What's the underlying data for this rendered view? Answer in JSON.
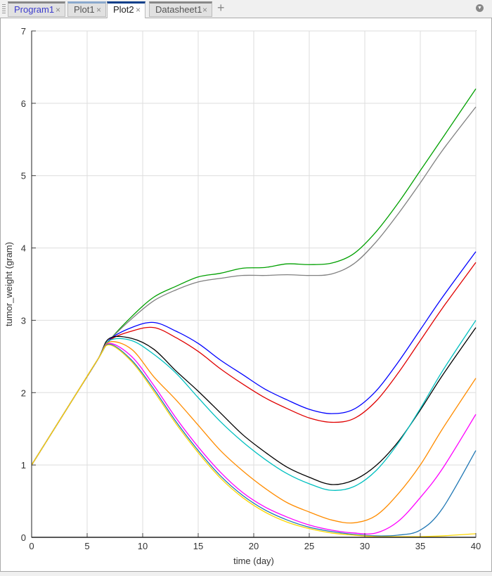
{
  "tabs": [
    {
      "label": "Program1",
      "close": "×",
      "color": "#3c3ccc"
    },
    {
      "label": "Plot1",
      "close": "×"
    },
    {
      "label": "Plot2",
      "close": "×",
      "active": true
    },
    {
      "label": "Datasheet1",
      "close": "×"
    }
  ],
  "add_tab": "+",
  "icons": {
    "grip": "grip-icon",
    "add": "plus-icon",
    "menu": "dropdown-menu-icon"
  },
  "chart_data": {
    "type": "line",
    "title": "",
    "xlabel": "time (day)",
    "ylabel": "tumor_weight (gram)",
    "xlim": [
      0,
      40
    ],
    "ylim": [
      0,
      7
    ],
    "xticks": [
      0,
      5,
      10,
      15,
      20,
      25,
      30,
      35,
      40
    ],
    "yticks": [
      0,
      1,
      2,
      3,
      4,
      5,
      6,
      7
    ],
    "grid": true,
    "x": [
      0,
      2,
      4,
      6,
      7,
      9,
      11,
      13,
      15,
      17,
      19,
      21,
      23,
      25,
      27,
      29,
      31,
      33,
      35,
      37,
      40
    ],
    "series": [
      {
        "color": "#00a000",
        "values": [
          1,
          1.49,
          1.98,
          2.47,
          2.72,
          3.05,
          3.32,
          3.47,
          3.6,
          3.65,
          3.72,
          3.73,
          3.78,
          3.77,
          3.79,
          3.92,
          4.22,
          4.62,
          5.07,
          5.52,
          6.2
        ]
      },
      {
        "color": "#808080",
        "values": [
          1,
          1.49,
          1.98,
          2.47,
          2.72,
          3.02,
          3.27,
          3.42,
          3.53,
          3.58,
          3.62,
          3.62,
          3.63,
          3.62,
          3.64,
          3.78,
          4.08,
          4.47,
          4.9,
          5.35,
          5.95
        ]
      },
      {
        "color": "#0000ff",
        "values": [
          1,
          1.49,
          1.98,
          2.47,
          2.73,
          2.9,
          2.97,
          2.85,
          2.68,
          2.45,
          2.25,
          2.05,
          1.9,
          1.77,
          1.71,
          1.77,
          2.02,
          2.42,
          2.87,
          3.32,
          3.95
        ]
      },
      {
        "color": "#e00000",
        "values": [
          1,
          1.49,
          1.98,
          2.47,
          2.72,
          2.85,
          2.9,
          2.76,
          2.57,
          2.33,
          2.12,
          1.93,
          1.78,
          1.65,
          1.59,
          1.64,
          1.88,
          2.27,
          2.72,
          3.17,
          3.8
        ]
      },
      {
        "color": "#000000",
        "values": [
          1,
          1.49,
          1.98,
          2.47,
          2.75,
          2.75,
          2.6,
          2.3,
          2.02,
          1.72,
          1.42,
          1.18,
          0.97,
          0.83,
          0.73,
          0.79,
          0.99,
          1.32,
          1.76,
          2.24,
          2.9
        ]
      },
      {
        "color": "#00c0c0",
        "values": [
          1,
          1.49,
          1.98,
          2.47,
          2.72,
          2.72,
          2.53,
          2.27,
          1.93,
          1.6,
          1.32,
          1.08,
          0.88,
          0.74,
          0.65,
          0.7,
          0.92,
          1.3,
          1.78,
          2.3,
          3.0
        ]
      },
      {
        "color": "#ff8c00",
        "values": [
          1,
          1.49,
          1.98,
          2.47,
          2.7,
          2.6,
          2.22,
          1.9,
          1.55,
          1.2,
          0.92,
          0.68,
          0.48,
          0.35,
          0.24,
          0.2,
          0.3,
          0.6,
          1.0,
          1.5,
          2.2
        ]
      },
      {
        "color": "#ff00ff",
        "values": [
          1,
          1.49,
          1.98,
          2.47,
          2.68,
          2.5,
          2.1,
          1.65,
          1.25,
          0.9,
          0.62,
          0.42,
          0.28,
          0.17,
          0.1,
          0.06,
          0.06,
          0.22,
          0.55,
          0.95,
          1.7
        ]
      },
      {
        "color": "#1f77b4",
        "values": [
          1,
          1.49,
          1.98,
          2.47,
          2.67,
          2.45,
          2.05,
          1.6,
          1.2,
          0.85,
          0.58,
          0.38,
          0.24,
          0.14,
          0.08,
          0.04,
          0.02,
          0.03,
          0.1,
          0.4,
          1.2
        ]
      },
      {
        "color": "#ffd700",
        "values": [
          1,
          1.49,
          1.98,
          2.47,
          2.66,
          2.43,
          2.02,
          1.57,
          1.17,
          0.82,
          0.55,
          0.35,
          0.21,
          0.12,
          0.06,
          0.03,
          0.01,
          0.01,
          0.01,
          0.02,
          0.05
        ]
      }
    ]
  }
}
